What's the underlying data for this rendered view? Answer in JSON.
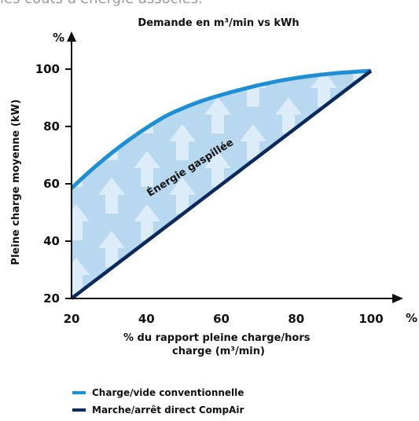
{
  "top_fragment": "les coûts d'énergie associés.",
  "chart_data": {
    "type": "area",
    "title": "Demande en m³/min vs kWh",
    "xlabel_line1": "% du rapport pleine charge/hors",
    "xlabel_line2": "charge (m³/min)",
    "ylabel": "Pleine charge moyenne (kW)",
    "x_unit": "%",
    "y_unit": "%",
    "xlim": [
      20,
      100
    ],
    "ylim": [
      20,
      100
    ],
    "x_ticks": [
      20,
      40,
      60,
      80,
      100
    ],
    "y_ticks": [
      20,
      40,
      60,
      80,
      100
    ],
    "annotation": "Énergie gaspillée",
    "series": [
      {
        "name": "Charge/vide conventionnelle",
        "color": "#1e8fd5",
        "x": [
          20,
          25,
          30,
          35,
          40,
          45,
          50,
          55,
          60,
          65,
          70,
          75,
          80,
          85,
          90,
          95,
          100
        ],
        "y": [
          58.5,
          64.5,
          70,
          75,
          79.5,
          83.5,
          86.5,
          89,
          91,
          92.8,
          94.4,
          95.8,
          96.9,
          97.8,
          98.5,
          99,
          99.4
        ]
      },
      {
        "name": "Marche/arrêt direct CompAir",
        "color": "#0b2a5b",
        "x": [
          20,
          100
        ],
        "y": [
          20,
          99.4
        ]
      }
    ],
    "fill_color": "#b8d8f0",
    "grid": false,
    "legend_position": "bottom-left"
  }
}
